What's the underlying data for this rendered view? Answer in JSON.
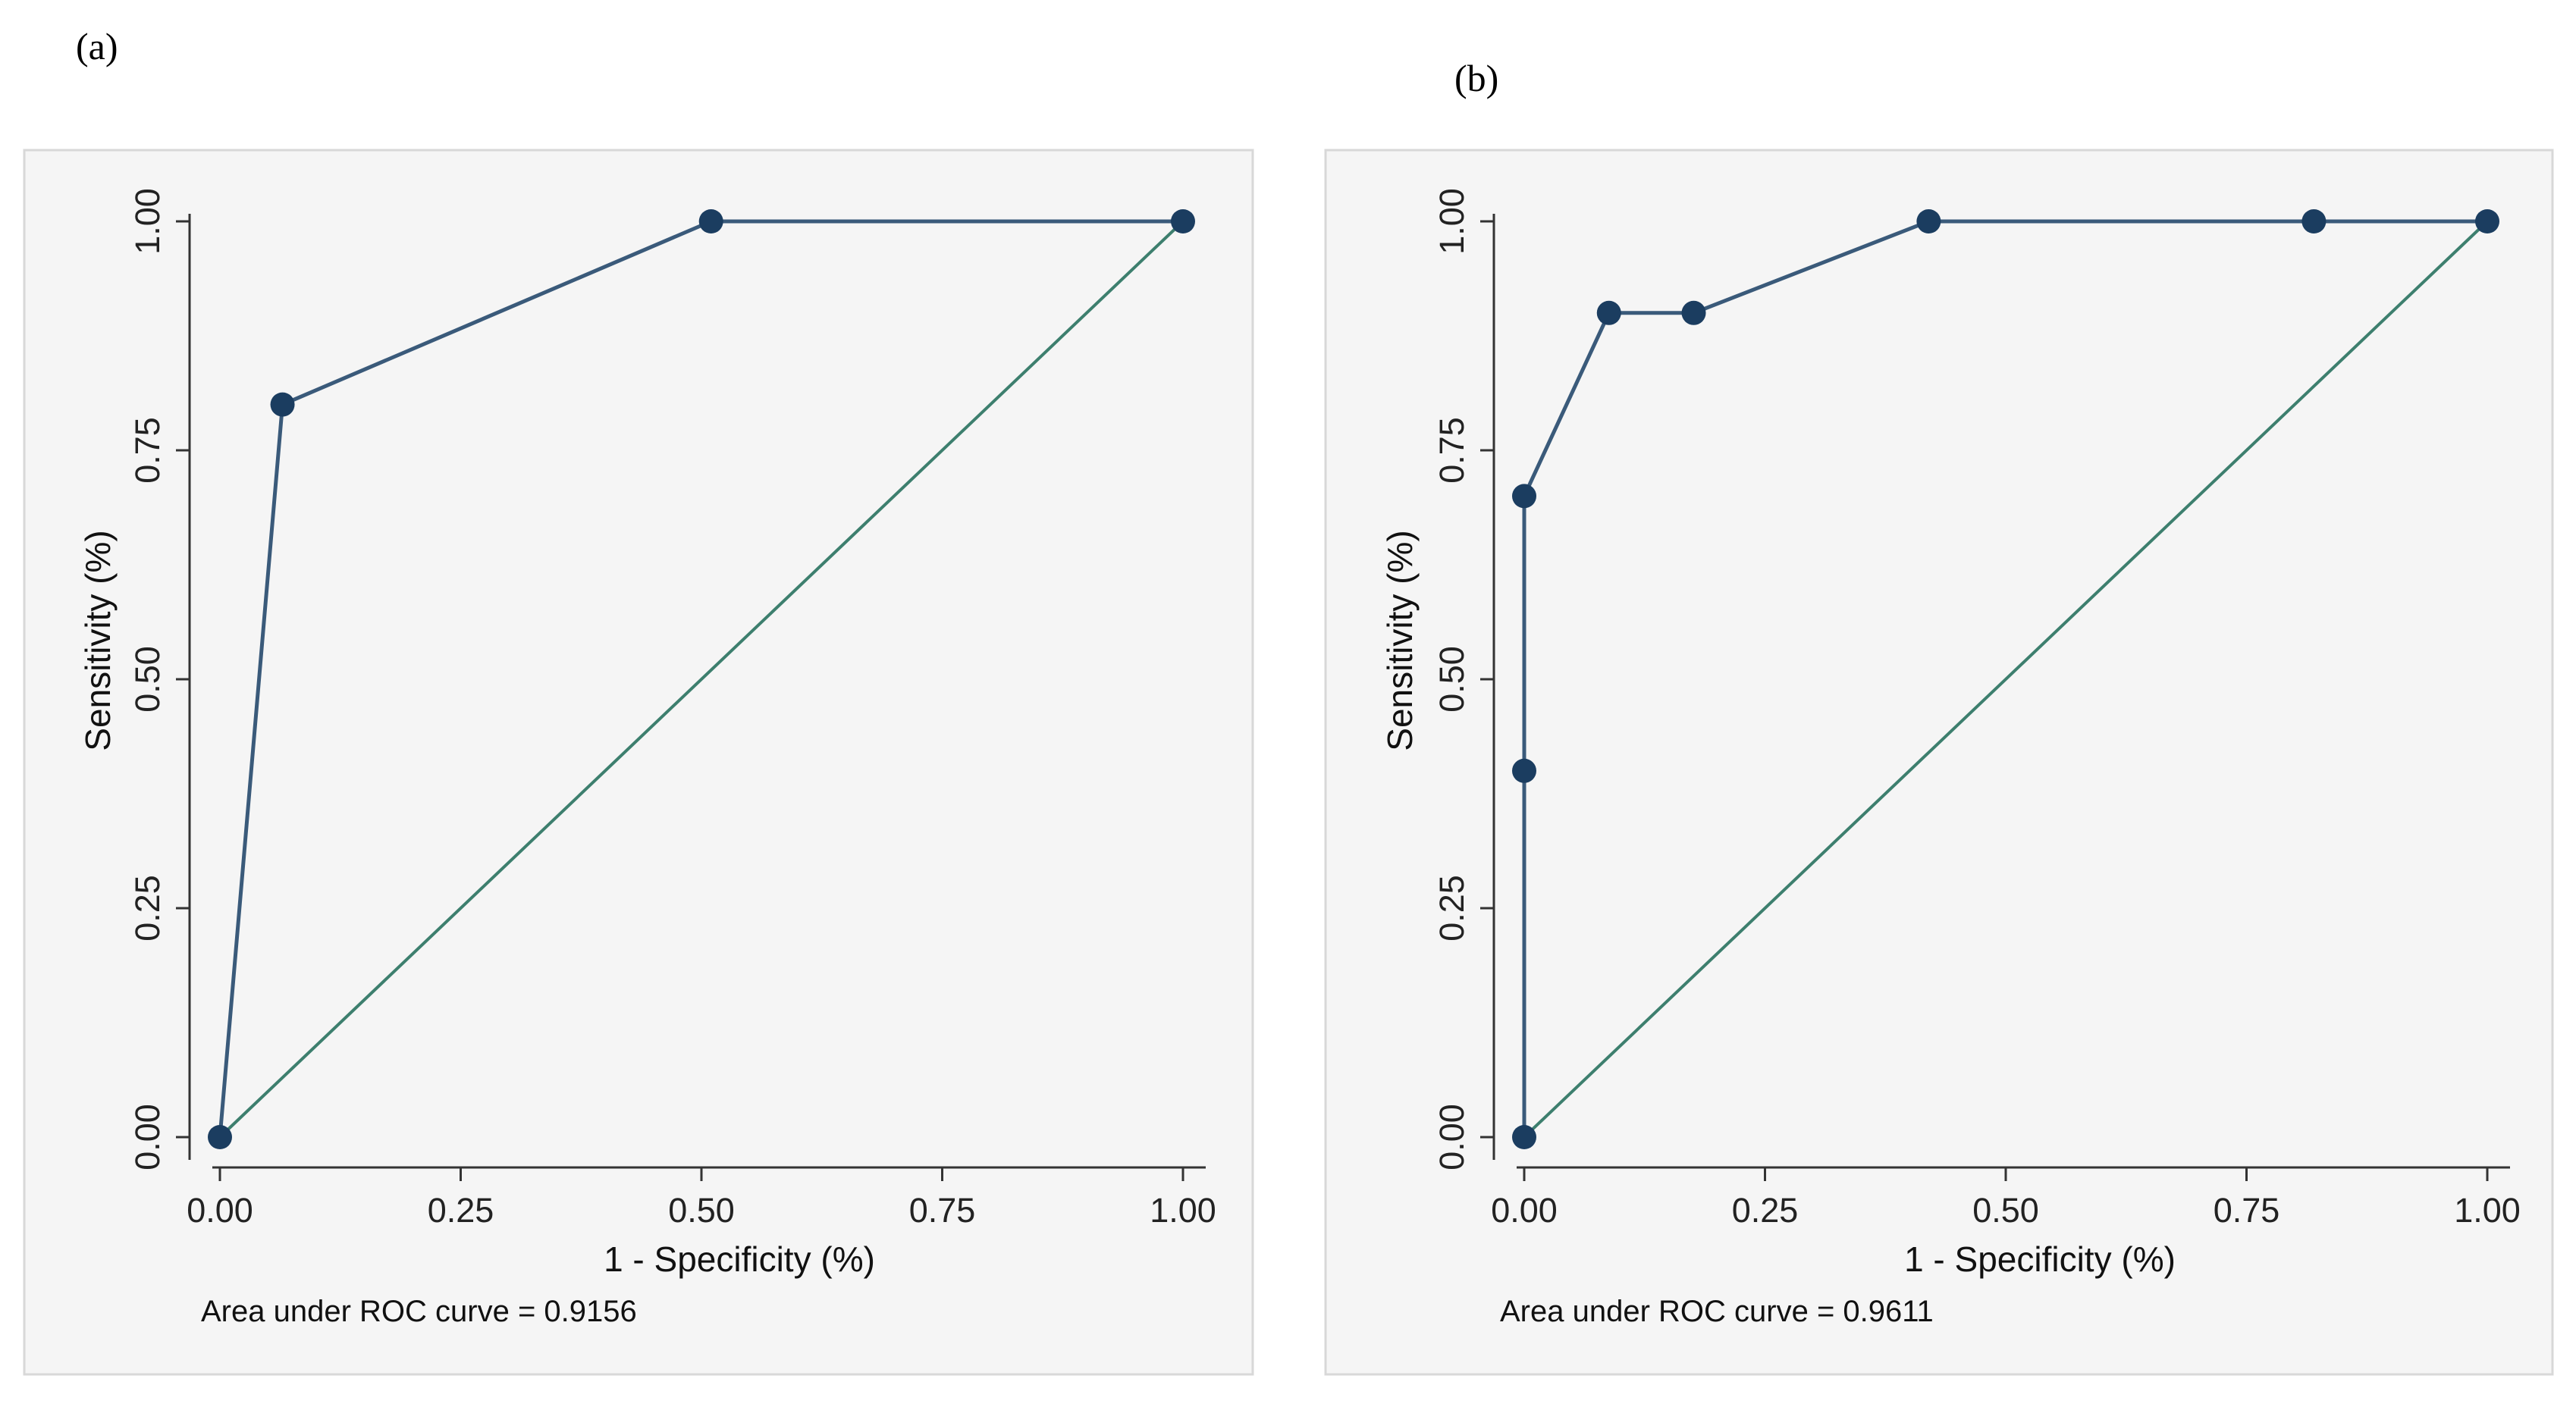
{
  "colors": {
    "background": "#ffffff",
    "plot_background": "#f5f5f5",
    "border": "#d8d8d8",
    "roc_line": "#3a5a7a",
    "roc_marker": "#1b3d60",
    "reference_line": "#3d7f6e",
    "axis": "#333333"
  },
  "chart_data": [
    {
      "type": "line",
      "panel_label": "(a)",
      "title": "",
      "xlabel": "1 - Specificity (%)",
      "ylabel": "Sensitivity (%)",
      "xlim": [
        0,
        1
      ],
      "ylim": [
        0,
        1
      ],
      "xticks": [
        "0.00",
        "0.25",
        "0.50",
        "0.75",
        "1.00"
      ],
      "yticks": [
        "0.00",
        "0.25",
        "0.50",
        "0.75",
        "1.00"
      ],
      "note": "Area under ROC curve = 0.9156",
      "series": [
        {
          "name": "ROC",
          "x": [
            0,
            0.065,
            0.51,
            1.0
          ],
          "y": [
            0,
            0.8,
            1.0,
            1.0
          ],
          "markers": true
        },
        {
          "name": "Reference",
          "x": [
            0,
            1
          ],
          "y": [
            0,
            1
          ],
          "markers": false
        }
      ]
    },
    {
      "type": "line",
      "panel_label": "(b)",
      "title": "",
      "xlabel": "1 - Specificity (%)",
      "ylabel": "Sensitivity (%)",
      "xlim": [
        0,
        1
      ],
      "ylim": [
        0,
        1
      ],
      "xticks": [
        "0.00",
        "0.25",
        "0.50",
        "0.75",
        "1.00"
      ],
      "yticks": [
        "0.00",
        "0.25",
        "0.50",
        "0.75",
        "1.00"
      ],
      "note": "Area under ROC curve = 0.9611",
      "series": [
        {
          "name": "ROC",
          "x": [
            0,
            0,
            0,
            0.088,
            0.176,
            0.42,
            0.82,
            1.0
          ],
          "y": [
            0,
            0.4,
            0.7,
            0.9,
            0.9,
            1.0,
            1.0,
            1.0
          ],
          "markers": true
        },
        {
          "name": "Reference",
          "x": [
            0,
            1
          ],
          "y": [
            0,
            1
          ],
          "markers": false
        }
      ]
    }
  ]
}
